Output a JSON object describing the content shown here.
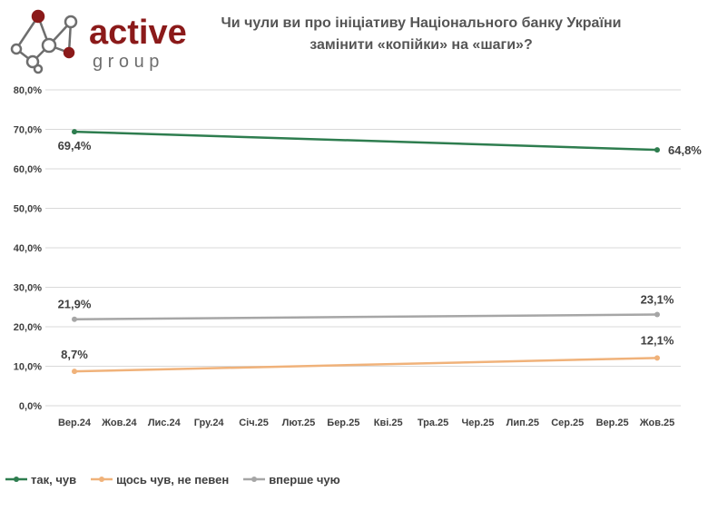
{
  "brand": {
    "name": "active",
    "sub": "g r o u p"
  },
  "colors": {
    "logo_red": "#8B1A1A",
    "logo_gray": "#6E6E6E",
    "grid": "#D9D9D9",
    "tick_text": "#404040"
  },
  "chart_data": {
    "type": "line",
    "title": "Чи чули ви про ініціативу Національного банку України замінити «копійки» на «шаги»?",
    "categories": [
      "Вер.24",
      "Жов.24",
      "Лис.24",
      "Гру.24",
      "Січ.25",
      "Лют.25",
      "Бер.25",
      "Кві.25",
      "Тра.25",
      "Чер.25",
      "Лип.25",
      "Сер.25",
      "Вер.25",
      "Жов.25"
    ],
    "y_ticks": [
      "0,0%",
      "10,0%",
      "20,0%",
      "30,0%",
      "40,0%",
      "50,0%",
      "60,0%",
      "70,0%",
      "80,0%"
    ],
    "ylim": [
      0,
      80
    ],
    "grid": true,
    "legend_position": "bottom-left",
    "series": [
      {
        "name": "так, чув",
        "color": "#2E7D4F",
        "points": [
          {
            "x": "Вер.24",
            "y": 69.4,
            "label": "69,4%"
          },
          {
            "x": "Жов.25",
            "y": 64.8,
            "label": "64,8%"
          }
        ]
      },
      {
        "name": "щось чув, не певен",
        "color": "#F0B27A",
        "points": [
          {
            "x": "Вер.24",
            "y": 8.7,
            "label": "8,7%"
          },
          {
            "x": "Жов.25",
            "y": 12.1,
            "label": "12,1%"
          }
        ]
      },
      {
        "name": "вперше чую",
        "color": "#A6A6A6",
        "points": [
          {
            "x": "Вер.24",
            "y": 21.9,
            "label": "21,9%"
          },
          {
            "x": "Жов.25",
            "y": 23.1,
            "label": "23,1%"
          }
        ]
      }
    ]
  }
}
